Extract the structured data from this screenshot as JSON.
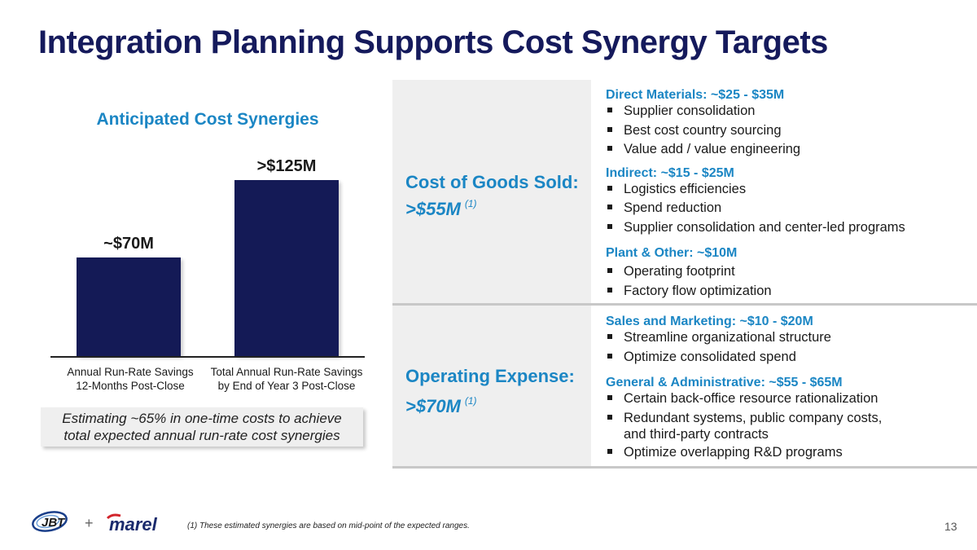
{
  "title": "Integration Planning Supports Cost Synergy Targets",
  "chart_data": {
    "type": "bar",
    "title": "Anticipated Cost Synergies",
    "categories": [
      "Annual Run-Rate Savings 12-Months Post-Close",
      "Total Annual Run-Rate Savings by End of Year 3 Post-Close"
    ],
    "category_lines": [
      [
        "Annual Run-Rate Savings",
        "12-Months Post-Close"
      ],
      [
        "Total Annual Run-Rate Savings",
        "by End of Year 3 Post-Close"
      ]
    ],
    "values": [
      70,
      125
    ],
    "data_labels": [
      "~$70M",
      ">$125M"
    ],
    "unit": "$M",
    "ylim": [
      0,
      135
    ],
    "color": "#141a56"
  },
  "callout": "Estimating ~65% in one-time costs to achieve total expected annual run-rate cost synergies",
  "sections": [
    {
      "heading": "Cost of Goods Sold:",
      "amount": ">$55M",
      "note": "(1)",
      "groups": [
        {
          "title": "Direct Materials: ~$25 - $35M",
          "items": [
            "Supplier consolidation",
            "Best cost country sourcing",
            "Value add / value engineering"
          ]
        },
        {
          "title": "Indirect: ~$15 - $25M",
          "items": [
            "Logistics efficiencies",
            "Spend reduction",
            "Supplier consolidation and center-led programs"
          ]
        },
        {
          "title": "Plant & Other: ~$10M",
          "items": [
            "Operating footprint",
            "Factory flow optimization"
          ]
        }
      ]
    },
    {
      "heading": "Operating Expense:",
      "amount": ">$70M",
      "note": "(1)",
      "groups": [
        {
          "title": "Sales and Marketing: ~$10 - $20M",
          "items": [
            "Streamline organizational structure",
            "Optimize consolidated spend"
          ]
        },
        {
          "title": "General & Administrative: ~$55 - $65M",
          "items": [
            "Certain back-office resource rationalization",
            "Redundant systems, public company costs,",
            "and third-party contracts",
            "Optimize overlapping R&D programs"
          ]
        }
      ]
    }
  ],
  "footer": {
    "logo_left": "JBT",
    "plus": "+",
    "logo_right": "marel",
    "footnote": "(1) These estimated synergies are based on mid-point of the expected ranges.",
    "page_number": "13"
  },
  "colors": {
    "title": "#151a5c",
    "accent": "#1b86c4",
    "bar": "#141a56",
    "panel": "#efefef"
  }
}
